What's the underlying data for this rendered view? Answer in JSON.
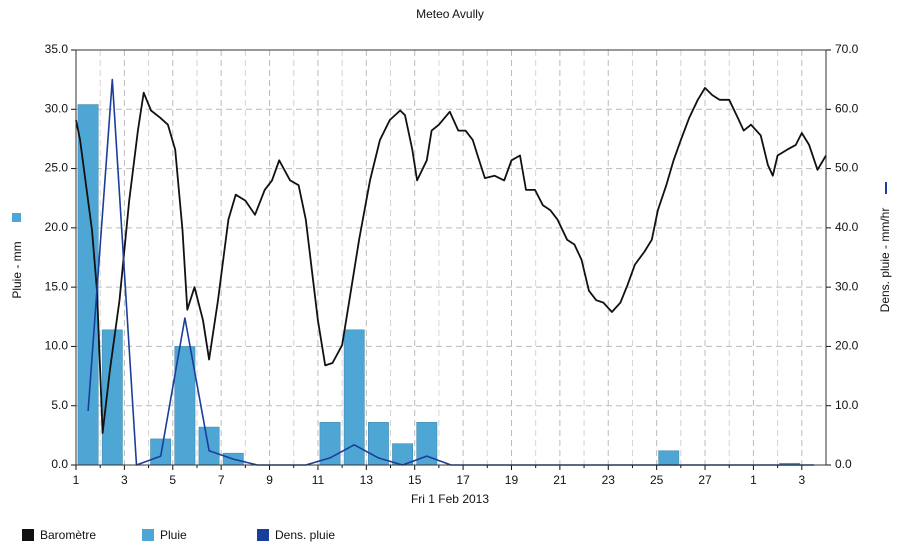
{
  "chart_data": {
    "type": "combo",
    "title": "Meteo  Avully",
    "x_label": "Fri 1 Feb 2013",
    "y_label": "Pluie - mm",
    "y2_label": "Dens. pluie - mm/hr",
    "xlim": [
      0,
      31
    ],
    "xticks": [
      {
        "value": 0,
        "label": "1"
      },
      {
        "value": 2,
        "label": "3"
      },
      {
        "value": 4,
        "label": "5"
      },
      {
        "value": 6,
        "label": "7"
      },
      {
        "value": 8,
        "label": "9"
      },
      {
        "value": 10,
        "label": "11"
      },
      {
        "value": 12,
        "label": "13"
      },
      {
        "value": 14,
        "label": "15"
      },
      {
        "value": 16,
        "label": "17"
      },
      {
        "value": 18,
        "label": "19"
      },
      {
        "value": 20,
        "label": "21"
      },
      {
        "value": 22,
        "label": "23"
      },
      {
        "value": 24,
        "label": "25"
      },
      {
        "value": 26,
        "label": "27"
      },
      {
        "value": 28,
        "label": "1"
      },
      {
        "value": 30,
        "label": "3"
      }
    ],
    "ylim": [
      0,
      35
    ],
    "yticks": [
      {
        "value": 0,
        "label": "0.0"
      },
      {
        "value": 5,
        "label": "5.0"
      },
      {
        "value": 10,
        "label": "10.0"
      },
      {
        "value": 15,
        "label": "15.0"
      },
      {
        "value": 20,
        "label": "20.0"
      },
      {
        "value": 25,
        "label": "25.0"
      },
      {
        "value": 30,
        "label": "30.0"
      },
      {
        "value": 35,
        "label": "35.0"
      }
    ],
    "y2lim": [
      0,
      70
    ],
    "y2ticks": [
      {
        "value": 0,
        "label": "0.0"
      },
      {
        "value": 10,
        "label": "10.0"
      },
      {
        "value": 20,
        "label": "20.0"
      },
      {
        "value": 30,
        "label": "30.0"
      },
      {
        "value": 40,
        "label": "40.0"
      },
      {
        "value": 50,
        "label": "50.0"
      },
      {
        "value": 60,
        "label": "60.0"
      },
      {
        "value": 70,
        "label": "70.0"
      }
    ],
    "grid": true,
    "legend": "bottom",
    "series": [
      {
        "name": "Baromètre",
        "type": "line",
        "color": "#111111",
        "x": [
          0,
          0.17,
          0.66,
          0.87,
          1.1,
          1.4,
          1.8,
          2.2,
          2.56,
          2.8,
          3.1,
          3.47,
          3.8,
          4.1,
          4.4,
          4.6,
          4.9,
          5.25,
          5.5,
          5.87,
          6.3,
          6.6,
          7.0,
          7.4,
          7.8,
          8.1,
          8.4,
          8.85,
          9.2,
          9.5,
          9.75,
          10.0,
          10.3,
          10.6,
          11.0,
          11.3,
          11.7,
          12.15,
          12.56,
          12.97,
          13.4,
          13.6,
          13.9,
          14.1,
          14.5,
          14.7,
          15.0,
          15.45,
          15.8,
          16.1,
          16.4,
          16.6,
          16.9,
          17.3,
          17.7,
          18.0,
          18.35,
          18.6,
          18.97,
          19.3,
          19.6,
          19.9,
          20.3,
          20.6,
          20.9,
          21.2,
          21.5,
          21.8,
          22.15,
          22.5,
          22.8,
          23.1,
          23.5,
          23.8,
          24.05,
          24.4,
          24.7,
          25.0,
          25.35,
          25.7,
          26.0,
          26.3,
          26.6,
          27.0,
          27.35,
          27.6,
          27.9,
          28.3,
          28.6,
          28.8,
          29.0,
          29.4,
          29.75,
          30.0,
          30.3,
          30.65,
          31.0
        ],
        "values": [
          29.1,
          27.4,
          19.8,
          14.7,
          2.7,
          8.0,
          13.9,
          22.3,
          28.2,
          31.4,
          29.9,
          29.3,
          28.7,
          26.6,
          19.8,
          13.1,
          15.0,
          12.2,
          8.9,
          13.9,
          20.7,
          22.8,
          22.3,
          21.1,
          23.2,
          24.0,
          25.7,
          24.0,
          23.6,
          20.7,
          16.4,
          12.2,
          8.4,
          8.6,
          10.1,
          13.9,
          19.0,
          24.0,
          27.4,
          29.1,
          29.9,
          29.5,
          26.6,
          24.0,
          25.7,
          28.2,
          28.7,
          29.8,
          28.2,
          28.2,
          27.4,
          26.1,
          24.2,
          24.4,
          24.0,
          25.7,
          26.1,
          23.2,
          23.2,
          21.9,
          21.5,
          20.7,
          19.0,
          18.6,
          17.3,
          14.7,
          13.9,
          13.7,
          12.9,
          13.7,
          15.2,
          16.9,
          18.0,
          19.0,
          21.5,
          23.6,
          25.7,
          27.4,
          29.3,
          30.8,
          31.8,
          31.2,
          30.8,
          30.8,
          29.3,
          28.2,
          28.7,
          27.8,
          25.3,
          24.4,
          26.1,
          26.6,
          27.0,
          28.0,
          27.0,
          24.9,
          26.1
        ]
      },
      {
        "name": "Pluie",
        "type": "bar",
        "color": "#4ea6d4",
        "x": [
          0.5,
          1.5,
          3.5,
          4.5,
          5.5,
          6.5,
          10.5,
          11.5,
          12.5,
          13.5,
          14.5,
          24.5,
          29.5
        ],
        "values": [
          30.4,
          11.4,
          2.2,
          10.0,
          3.2,
          1.0,
          3.6,
          11.4,
          3.6,
          1.8,
          3.6,
          1.2,
          0.15
        ]
      },
      {
        "name": "Dens. pluie",
        "type": "line",
        "axis": "y2",
        "color": "#1a3e9b",
        "x": [
          0.5,
          1.5,
          2.5,
          3.5,
          4.5,
          5.5,
          6.5,
          7.5,
          8.5,
          9.5,
          10.5,
          11.5,
          12.5,
          13.5,
          14.5,
          15.5,
          16.5,
          17.5,
          18.5,
          19.5,
          20.5,
          21.5,
          22.5,
          23.5,
          24.5,
          25.5,
          26.5,
          27.5,
          28.5,
          29.5,
          30.5
        ],
        "values": [
          9.1,
          65,
          0,
          1.5,
          24.8,
          2.4,
          1,
          0,
          0,
          0,
          1.2,
          3.4,
          1.2,
          0,
          1.5,
          0,
          0,
          0,
          0,
          0,
          0,
          0,
          0,
          0,
          0,
          0,
          0,
          0,
          0,
          0,
          0
        ]
      }
    ]
  }
}
